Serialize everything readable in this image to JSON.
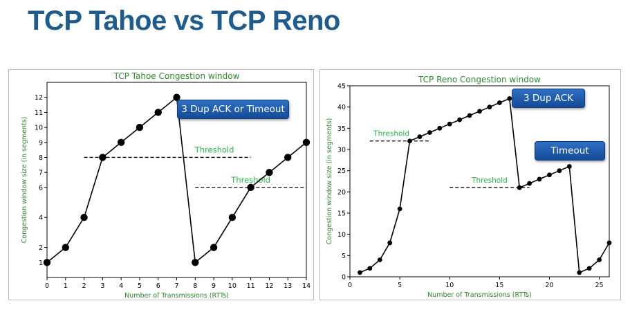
{
  "slide": {
    "title": "TCP Tahoe vs TCP Reno"
  },
  "chart_data": [
    {
      "type": "line",
      "title": "TCP Tahoe Congestion window",
      "xlabel": "Number of Transmissions (RTTs)",
      "ylabel": "Congestion window size (in segments)",
      "x": [
        0,
        1,
        2,
        3,
        4,
        5,
        6,
        7,
        8,
        9,
        10,
        11,
        12,
        13,
        14
      ],
      "series": [
        {
          "values": [
            1,
            2,
            4,
            8,
            9,
            10,
            11,
            12,
            1,
            2,
            4,
            6,
            7,
            8,
            9
          ]
        }
      ],
      "xlim": [
        0,
        14
      ],
      "ylim": [
        0,
        13
      ],
      "xticks": [
        0,
        1,
        2,
        3,
        4,
        5,
        6,
        7,
        8,
        9,
        10,
        11,
        12,
        13,
        14
      ],
      "yticks": [
        1,
        2,
        4,
        6,
        7,
        8,
        9,
        10,
        11,
        12
      ],
      "thresholds": [
        {
          "label": "Threshold",
          "y": 8,
          "x_start": 2,
          "x_end": 11
        },
        {
          "label": "Threshold",
          "y": 6,
          "x_start": 8,
          "x_end": 14
        }
      ],
      "callout": "3 Dup ACK or Timeout",
      "colors": {
        "title": "#2e8b2e",
        "label": "#2e8b2e",
        "threshold_label": "#27b84a",
        "line": "#000000"
      },
      "grid": false
    },
    {
      "type": "line",
      "title": "TCP Reno Congestion window",
      "xlabel": "Number of Transmissions (RTTs)",
      "ylabel": "Congestion window size (in segments)",
      "x": [
        1,
        2,
        3,
        4,
        5,
        6,
        7,
        8,
        9,
        10,
        11,
        12,
        13,
        14,
        15,
        16,
        17,
        18,
        19,
        20,
        21,
        22,
        23,
        24,
        25,
        26
      ],
      "series": [
        {
          "values": [
            1,
            2,
            4,
            8,
            16,
            32,
            33,
            34,
            35,
            36,
            37,
            38,
            39,
            40,
            41,
            42,
            21,
            22,
            23,
            24,
            25,
            26,
            1,
            2,
            4,
            8
          ]
        }
      ],
      "xlim": [
        0,
        26
      ],
      "ylim": [
        0,
        45
      ],
      "xticks": [
        0,
        5,
        10,
        15,
        20,
        25
      ],
      "yticks": [
        0,
        5,
        10,
        15,
        20,
        25,
        30,
        35,
        40,
        45
      ],
      "thresholds": [
        {
          "label": "Threshold",
          "y": 32,
          "x_start": 2,
          "x_end": 8
        },
        {
          "label": "Threshold",
          "y": 21,
          "x_start": 10,
          "x_end": 18
        }
      ],
      "callouts": [
        "3 Dup ACK",
        "Timeout"
      ],
      "colors": {
        "title": "#2e8b2e",
        "label": "#2e8b2e",
        "threshold_label": "#27b84a",
        "line": "#000000"
      },
      "grid": false
    }
  ]
}
